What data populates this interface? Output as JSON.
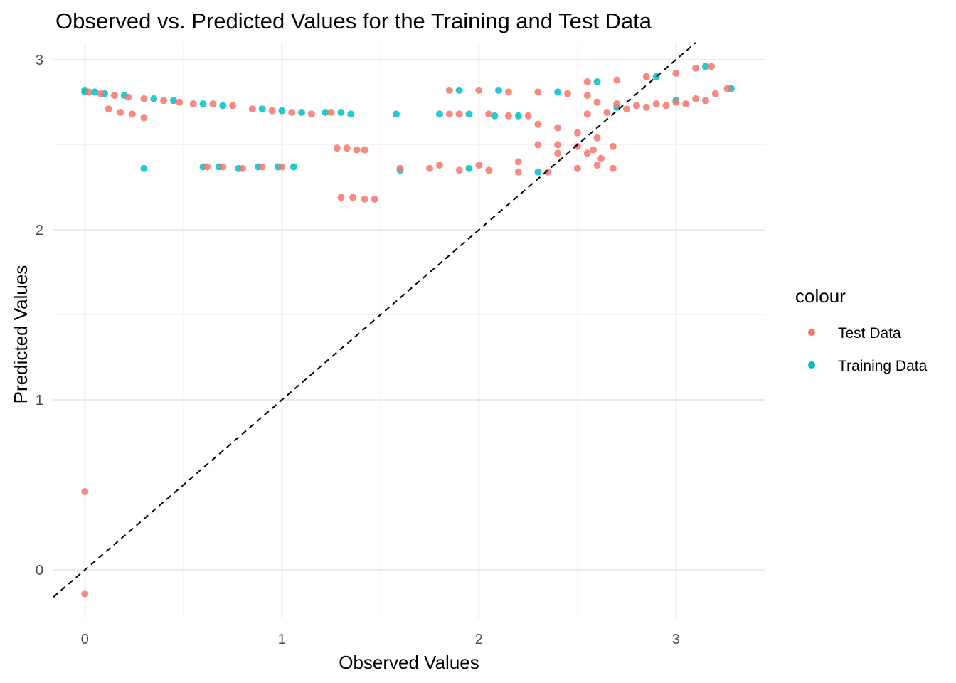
{
  "chart_data": {
    "type": "scatter",
    "title": "Observed vs. Predicted Values for the Training and Test Data",
    "xlabel": "Observed Values",
    "ylabel": "Predicted Values",
    "xlim": [
      -0.16,
      3.45
    ],
    "ylim": [
      -0.28,
      3.1
    ],
    "x_ticks": [
      0,
      1,
      2,
      3
    ],
    "y_ticks": [
      0,
      1,
      2,
      3
    ],
    "grid": true,
    "reference_line": {
      "type": "identity",
      "style": "dashed",
      "color": "#000000"
    },
    "legend": {
      "title": "colour",
      "position": "right"
    },
    "series": [
      {
        "name": "Test Data",
        "color": "#F8766D",
        "points": [
          [
            0.0,
            0.46
          ],
          [
            0.0,
            -0.14
          ],
          [
            0.02,
            2.81
          ],
          [
            0.08,
            2.8
          ],
          [
            0.15,
            2.79
          ],
          [
            0.22,
            2.78
          ],
          [
            0.3,
            2.77
          ],
          [
            0.4,
            2.76
          ],
          [
            0.48,
            2.75
          ],
          [
            0.55,
            2.74
          ],
          [
            0.12,
            2.71
          ],
          [
            0.18,
            2.69
          ],
          [
            0.24,
            2.68
          ],
          [
            0.3,
            2.66
          ],
          [
            0.62,
            2.37
          ],
          [
            0.7,
            2.37
          ],
          [
            0.8,
            2.36
          ],
          [
            0.9,
            2.37
          ],
          [
            1.0,
            2.37
          ],
          [
            0.65,
            2.74
          ],
          [
            0.75,
            2.73
          ],
          [
            0.85,
            2.71
          ],
          [
            0.95,
            2.7
          ],
          [
            1.05,
            2.69
          ],
          [
            1.15,
            2.68
          ],
          [
            1.25,
            2.69
          ],
          [
            1.28,
            2.48
          ],
          [
            1.33,
            2.48
          ],
          [
            1.38,
            2.47
          ],
          [
            1.42,
            2.47
          ],
          [
            1.3,
            2.19
          ],
          [
            1.36,
            2.19
          ],
          [
            1.42,
            2.18
          ],
          [
            1.47,
            2.18
          ],
          [
            1.85,
            2.68
          ],
          [
            1.9,
            2.68
          ],
          [
            2.05,
            2.68
          ],
          [
            2.15,
            2.67
          ],
          [
            2.25,
            2.67
          ],
          [
            1.6,
            2.36
          ],
          [
            1.75,
            2.36
          ],
          [
            1.9,
            2.35
          ],
          [
            2.05,
            2.35
          ],
          [
            2.2,
            2.34
          ],
          [
            2.35,
            2.34
          ],
          [
            2.5,
            2.36
          ],
          [
            2.6,
            2.38
          ],
          [
            2.68,
            2.36
          ],
          [
            1.8,
            2.38
          ],
          [
            2.0,
            2.38
          ],
          [
            2.2,
            2.4
          ],
          [
            2.4,
            2.45
          ],
          [
            2.55,
            2.45
          ],
          [
            2.62,
            2.42
          ],
          [
            2.3,
            2.5
          ],
          [
            2.4,
            2.5
          ],
          [
            2.5,
            2.49
          ],
          [
            2.58,
            2.47
          ],
          [
            2.3,
            2.62
          ],
          [
            2.4,
            2.6
          ],
          [
            2.5,
            2.57
          ],
          [
            2.6,
            2.54
          ],
          [
            2.68,
            2.49
          ],
          [
            1.85,
            2.82
          ],
          [
            2.0,
            2.82
          ],
          [
            2.15,
            2.81
          ],
          [
            2.3,
            2.81
          ],
          [
            2.45,
            2.8
          ],
          [
            2.55,
            2.79
          ],
          [
            2.6,
            2.75
          ],
          [
            2.7,
            2.74
          ],
          [
            2.8,
            2.73
          ],
          [
            2.9,
            2.74
          ],
          [
            3.0,
            2.75
          ],
          [
            3.1,
            2.77
          ],
          [
            3.2,
            2.8
          ],
          [
            3.26,
            2.83
          ],
          [
            2.55,
            2.68
          ],
          [
            2.65,
            2.69
          ],
          [
            2.75,
            2.71
          ],
          [
            2.85,
            2.72
          ],
          [
            2.95,
            2.73
          ],
          [
            3.05,
            2.74
          ],
          [
            3.15,
            2.76
          ],
          [
            2.55,
            2.87
          ],
          [
            2.7,
            2.88
          ],
          [
            2.85,
            2.9
          ],
          [
            3.0,
            2.92
          ],
          [
            3.1,
            2.95
          ],
          [
            3.18,
            2.96
          ]
        ]
      },
      {
        "name": "Training Data",
        "color": "#00BFC4",
        "points": [
          [
            0.0,
            2.82
          ],
          [
            0.0,
            2.81
          ],
          [
            0.05,
            2.81
          ],
          [
            0.1,
            2.8
          ],
          [
            0.2,
            2.79
          ],
          [
            0.35,
            2.77
          ],
          [
            0.45,
            2.76
          ],
          [
            0.3,
            2.36
          ],
          [
            0.6,
            2.37
          ],
          [
            0.68,
            2.37
          ],
          [
            0.78,
            2.36
          ],
          [
            0.88,
            2.37
          ],
          [
            0.98,
            2.37
          ],
          [
            1.06,
            2.37
          ],
          [
            0.6,
            2.74
          ],
          [
            0.7,
            2.73
          ],
          [
            0.9,
            2.71
          ],
          [
            1.0,
            2.7
          ],
          [
            1.1,
            2.69
          ],
          [
            1.22,
            2.69
          ],
          [
            1.3,
            2.69
          ],
          [
            1.35,
            2.68
          ],
          [
            1.58,
            2.68
          ],
          [
            1.8,
            2.68
          ],
          [
            1.95,
            2.68
          ],
          [
            2.08,
            2.67
          ],
          [
            2.2,
            2.67
          ],
          [
            1.6,
            2.35
          ],
          [
            1.95,
            2.36
          ],
          [
            2.3,
            2.34
          ],
          [
            1.9,
            2.82
          ],
          [
            2.1,
            2.82
          ],
          [
            2.4,
            2.81
          ],
          [
            2.6,
            2.87
          ],
          [
            2.9,
            2.9
          ],
          [
            3.15,
            2.96
          ],
          [
            2.7,
            2.72
          ],
          [
            3.0,
            2.76
          ],
          [
            3.28,
            2.83
          ]
        ]
      }
    ]
  }
}
